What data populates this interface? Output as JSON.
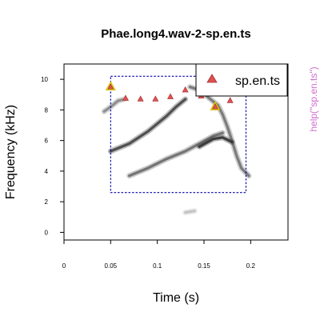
{
  "chart_data": {
    "type": "scatter",
    "title": "Phae.long4.wav-2-sp.en.ts",
    "xlabel": "Time (s)",
    "ylabel": "Frequency (kHz)",
    "xlim": [
      0,
      0.24
    ],
    "ylim": [
      -0.5,
      11
    ],
    "x_ticks": [
      0,
      0.05,
      0.1,
      0.15,
      0.2
    ],
    "x_tick_labels": [
      "0",
      "0.05",
      "0.1",
      "0.15",
      "0.2"
    ],
    "y_ticks": [
      0,
      2,
      4,
      6,
      8,
      10
    ],
    "y_tick_labels": [
      "0",
      "2",
      "4",
      "6",
      "8",
      "10"
    ],
    "grid": false,
    "legend_placement": "top-right",
    "series": [
      {
        "name": "sp.en.ts",
        "color": "#e05050",
        "highlight_color": "#f0e000",
        "x": [
          0.05,
          0.066,
          0.082,
          0.098,
          0.114,
          0.13,
          0.147,
          0.162,
          0.178,
          0.196
        ],
        "y": [
          9.5,
          8.75,
          8.7,
          8.7,
          8.85,
          9.3,
          8.9,
          8.2,
          8.6,
          9.3
        ],
        "highlighted": [
          true,
          false,
          false,
          false,
          false,
          false,
          false,
          true,
          false,
          false
        ]
      }
    ],
    "selection_box": {
      "x0": 0.05,
      "x1": 0.195,
      "y0": 2.6,
      "y1": 10.2,
      "color": "#0000aa"
    },
    "spectrogram_traces": [
      {
        "points": [
          [
            0.043,
            7.9
          ],
          [
            0.05,
            8.2
          ],
          [
            0.058,
            8.6
          ],
          [
            0.065,
            8.7
          ]
        ],
        "density": 0.45
      },
      {
        "points": [
          [
            0.05,
            5.3
          ],
          [
            0.07,
            5.8
          ],
          [
            0.09,
            6.6
          ],
          [
            0.11,
            7.6
          ],
          [
            0.12,
            8.2
          ],
          [
            0.13,
            8.7
          ]
        ],
        "density": 0.8
      },
      {
        "points": [
          [
            0.07,
            3.7
          ],
          [
            0.09,
            4.2
          ],
          [
            0.11,
            4.8
          ],
          [
            0.13,
            5.3
          ],
          [
            0.145,
            5.8
          ],
          [
            0.16,
            6.3
          ],
          [
            0.17,
            6.5
          ]
        ],
        "density": 0.6
      },
      {
        "points": [
          [
            0.135,
            9.5
          ],
          [
            0.145,
            9.3
          ],
          [
            0.155,
            8.8
          ],
          [
            0.165,
            8.3
          ],
          [
            0.17,
            7.7
          ],
          [
            0.175,
            6.9
          ],
          [
            0.18,
            6.0
          ],
          [
            0.185,
            5.0
          ],
          [
            0.19,
            4.2
          ],
          [
            0.198,
            3.7
          ]
        ],
        "density": 0.55
      },
      {
        "points": [
          [
            0.145,
            5.6
          ],
          [
            0.16,
            6.1
          ],
          [
            0.17,
            6.2
          ],
          [
            0.18,
            5.9
          ]
        ],
        "density": 0.9
      },
      {
        "points": [
          [
            0.13,
            1.3
          ],
          [
            0.14,
            1.4
          ]
        ],
        "density": 0.15
      }
    ]
  },
  "side_note": {
    "text": "help(\"sp.en.ts\")",
    "color": "#d070d0"
  }
}
